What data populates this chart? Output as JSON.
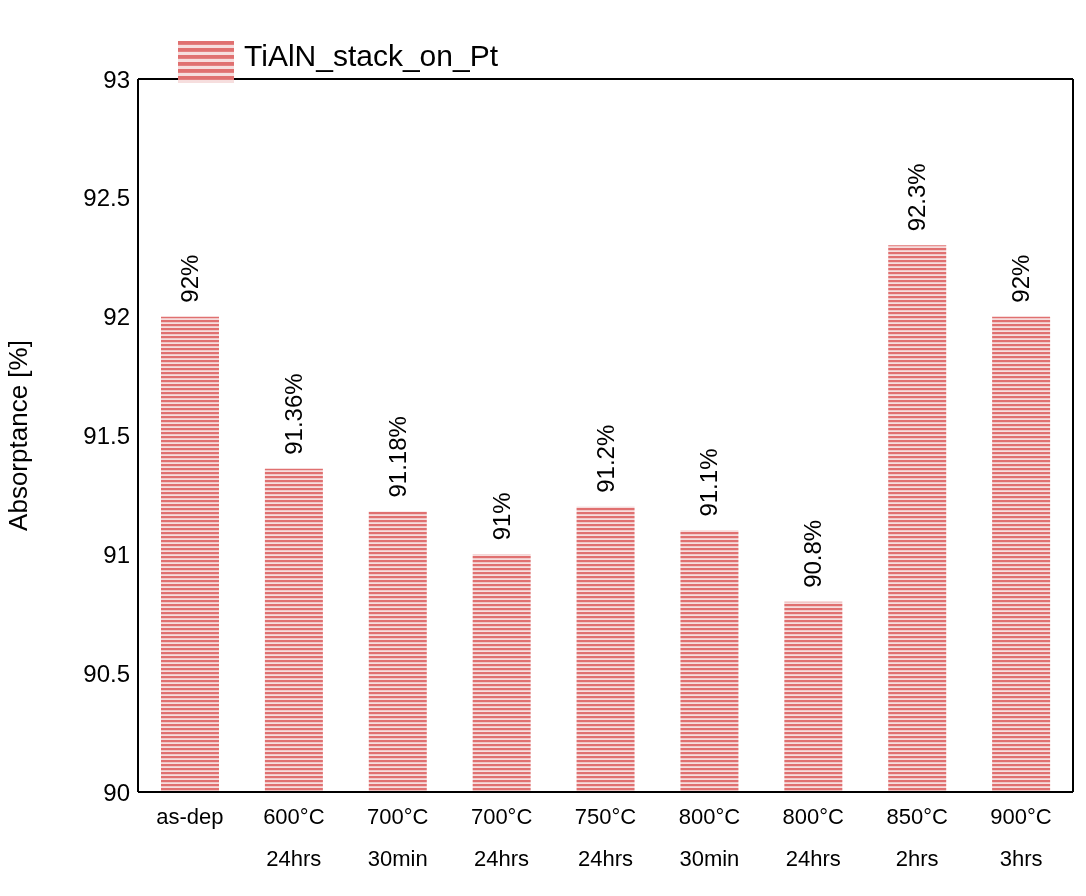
{
  "chart_data": {
    "type": "bar",
    "ylabel": "Absorptance [%]",
    "categories": [
      "as-dep",
      "600°C 24hrs",
      "700°C 30min",
      "700°C 24hrs",
      "750°C 24hrs",
      "800°C 30min",
      "800°C 24hrs",
      "850°C 2hrs",
      "900°C 3hrs"
    ],
    "series": [
      {
        "name": "TiAlN_stack_on_Pt",
        "color": "#e07070",
        "values": [
          92,
          91.36,
          91.18,
          91,
          91.2,
          91.1,
          90.8,
          92.3,
          92
        ],
        "value_labels": [
          "92%",
          "91.36%",
          "91.18%",
          "91%",
          "91.2%",
          "91.1%",
          "90.8%",
          "92.3%",
          "92%"
        ]
      }
    ],
    "ylim": [
      90,
      93
    ],
    "yticks": [
      90,
      90.5,
      91,
      91.5,
      92,
      92.5,
      93
    ],
    "grid": false,
    "legend": "top left"
  }
}
